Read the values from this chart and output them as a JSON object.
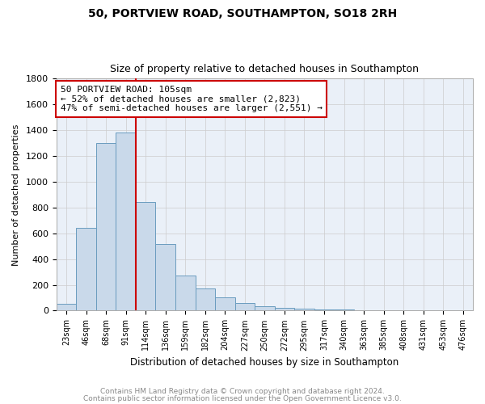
{
  "title": "50, PORTVIEW ROAD, SOUTHAMPTON, SO18 2RH",
  "subtitle": "Size of property relative to detached houses in Southampton",
  "xlabel": "Distribution of detached houses by size in Southampton",
  "ylabel": "Number of detached properties",
  "annotation_line1": "50 PORTVIEW ROAD: 105sqm",
  "annotation_line2": "← 52% of detached houses are smaller (2,823)",
  "annotation_line3": "47% of semi-detached houses are larger (2,551) →",
  "bar_color": "#c9d9ea",
  "bar_edge_color": "#6a9cbf",
  "vline_color": "#cc0000",
  "annotation_box_edge_color": "#cc0000",
  "categories": [
    "23sqm",
    "46sqm",
    "68sqm",
    "91sqm",
    "114sqm",
    "136sqm",
    "159sqm",
    "182sqm",
    "204sqm",
    "227sqm",
    "250sqm",
    "272sqm",
    "295sqm",
    "317sqm",
    "340sqm",
    "363sqm",
    "385sqm",
    "408sqm",
    "431sqm",
    "453sqm",
    "476sqm"
  ],
  "values": [
    50,
    640,
    1300,
    1380,
    840,
    520,
    275,
    170,
    100,
    60,
    35,
    22,
    15,
    10,
    6,
    4,
    2,
    1,
    1,
    0,
    0
  ],
  "ylim": [
    0,
    1800
  ],
  "yticks": [
    0,
    200,
    400,
    600,
    800,
    1000,
    1200,
    1400,
    1600,
    1800
  ],
  "footer_line1": "Contains HM Land Registry data © Crown copyright and database right 2024.",
  "footer_line2": "Contains public sector information licensed under the Open Government Licence v3.0.",
  "vline_bin_index": 3.5,
  "background_color": "#ffffff",
  "grid_color": "#cccccc",
  "title_fontsize": 10,
  "subtitle_fontsize": 9
}
